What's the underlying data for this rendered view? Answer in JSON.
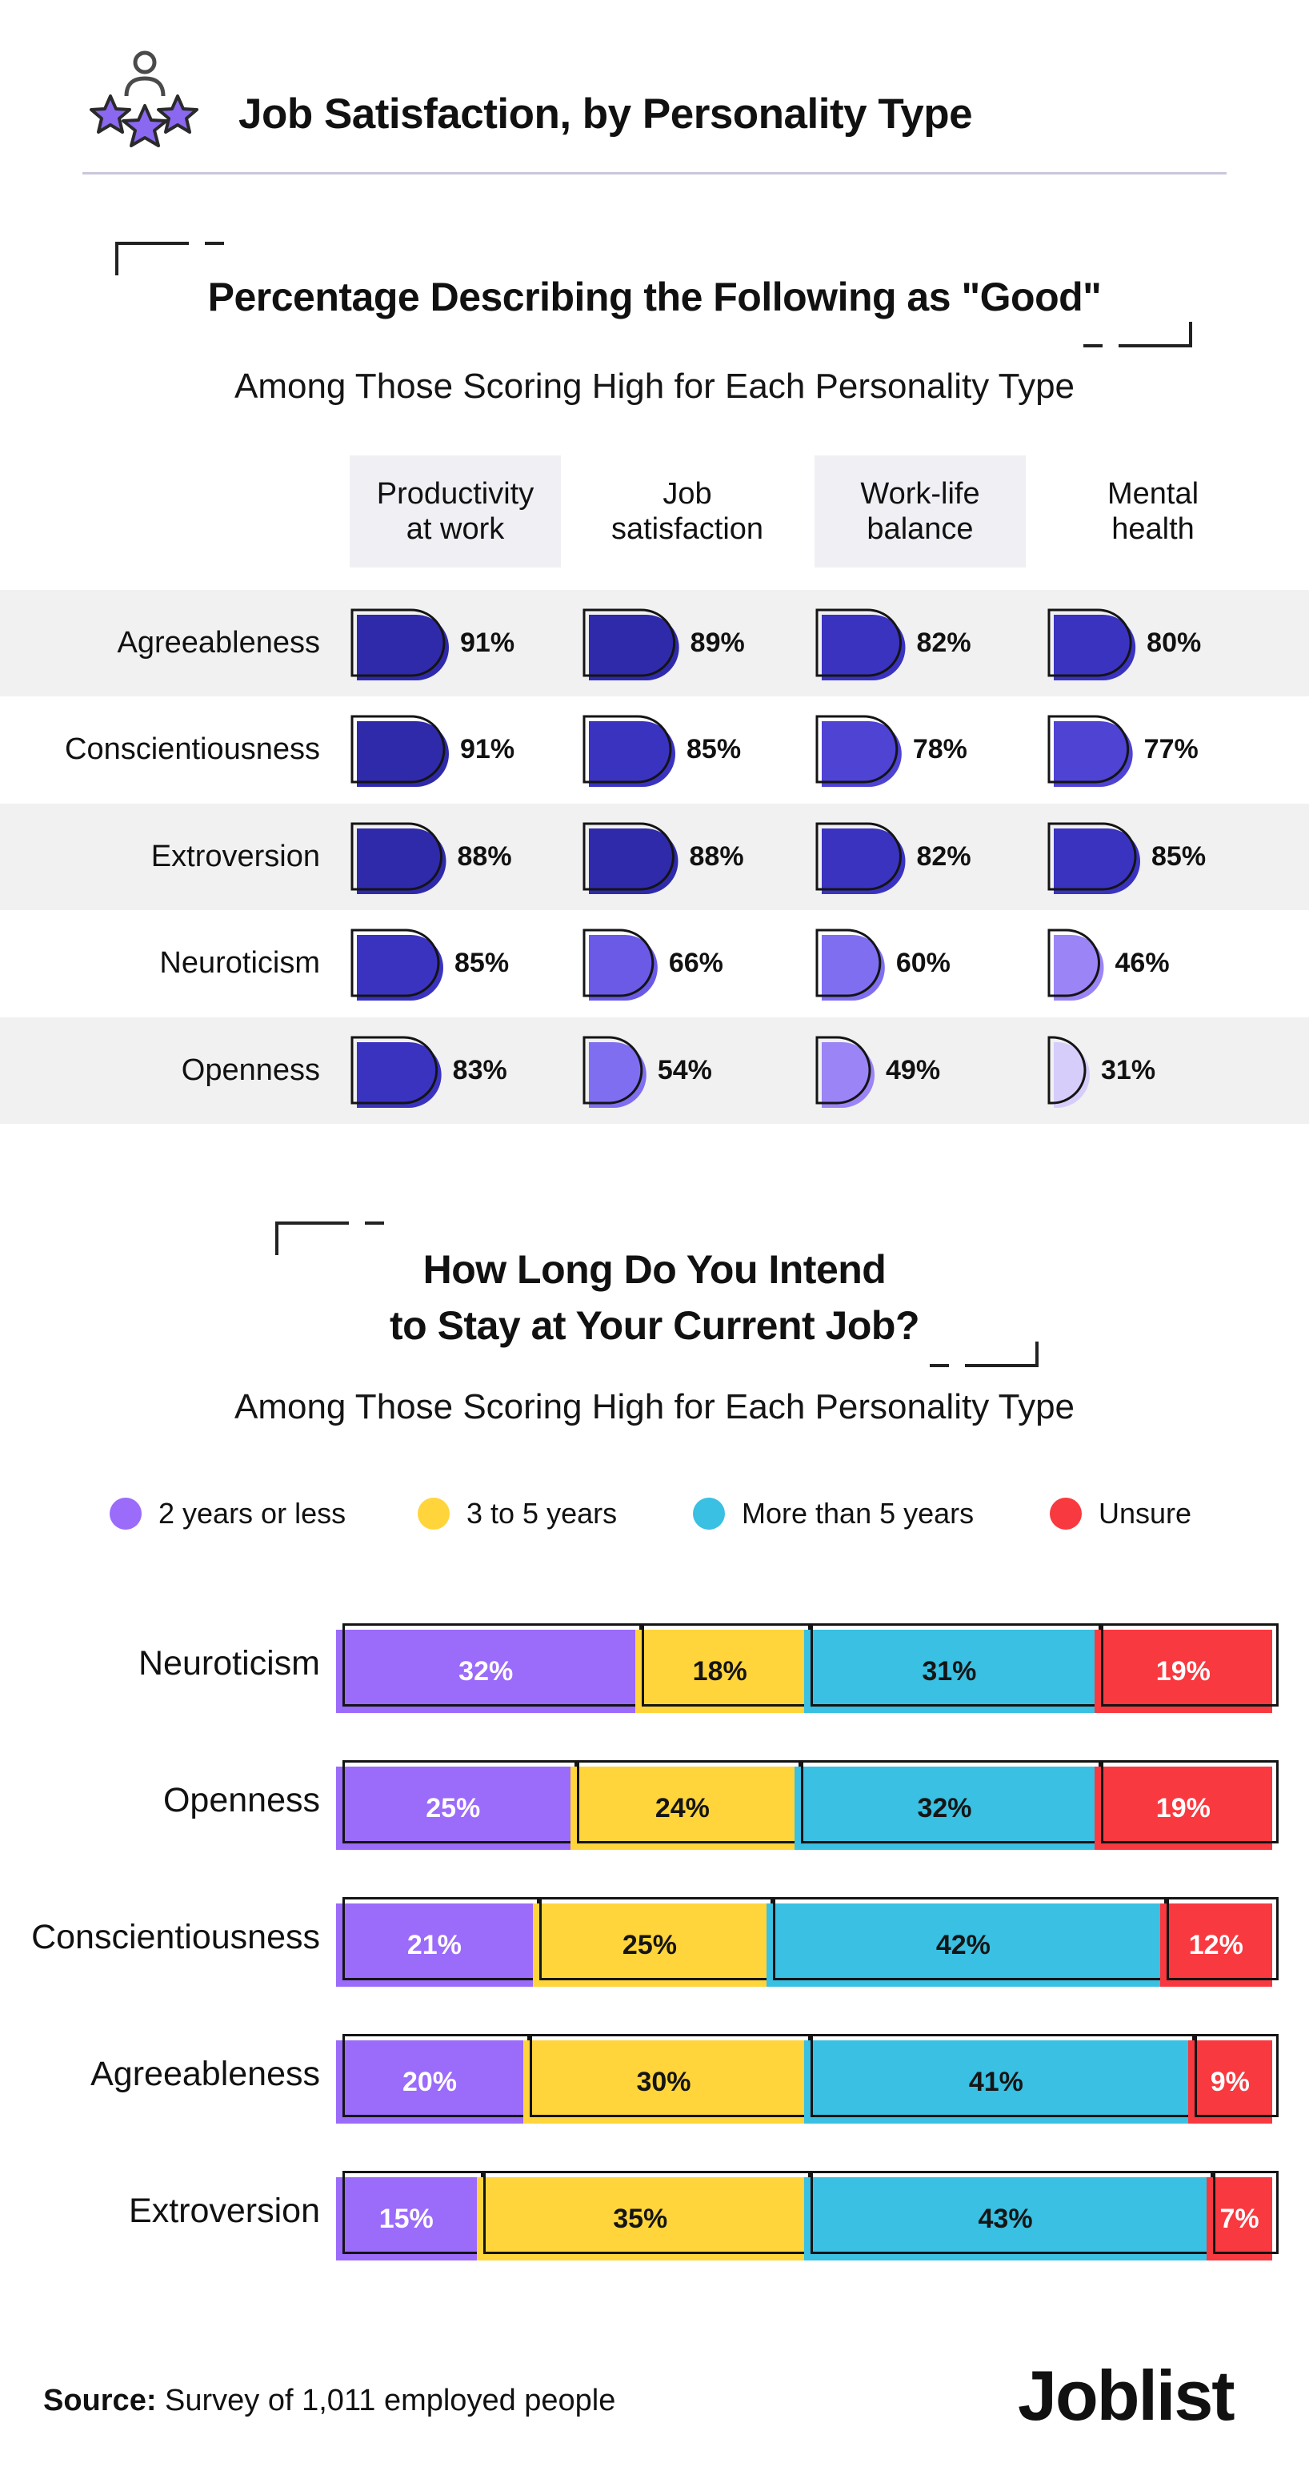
{
  "header": {
    "title": "Job Satisfaction, by Personality Type",
    "icon": "person-with-stars-icon"
  },
  "section1": {
    "title": "Percentage Describing the Following as \"Good\"",
    "subtitle": "Among Those Scoring High for Each Personality Type",
    "columns": [
      {
        "line1": "Productivity",
        "line2": "at work"
      },
      {
        "line1": "Job",
        "line2": "satisfaction"
      },
      {
        "line1": "Work-life",
        "line2": "balance"
      },
      {
        "line1": "Mental",
        "line2": "health"
      }
    ],
    "rows": [
      {
        "label": "Agreeableness",
        "pcts": [
          "91%",
          "89%",
          "82%",
          "80%"
        ]
      },
      {
        "label": "Conscientiousness",
        "pcts": [
          "91%",
          "85%",
          "78%",
          "77%"
        ]
      },
      {
        "label": "Extroversion",
        "pcts": [
          "88%",
          "88%",
          "82%",
          "85%"
        ]
      },
      {
        "label": "Neuroticism",
        "pcts": [
          "85%",
          "66%",
          "60%",
          "46%"
        ]
      },
      {
        "label": "Openness",
        "pcts": [
          "83%",
          "54%",
          "49%",
          "31%"
        ]
      }
    ]
  },
  "section2": {
    "title_line1": "How Long Do You Intend",
    "title_line2": "to Stay at Your Current Job?",
    "subtitle": "Among Those Scoring High for Each Personality Type",
    "legend": [
      {
        "label": "2 years or less",
        "color": "#9b6bfa"
      },
      {
        "label": "3 to 5 years",
        "color": "#ffd53b"
      },
      {
        "label": "More than 5 years",
        "color": "#39c0e2"
      },
      {
        "label": "Unsure",
        "color": "#f8393f"
      }
    ],
    "rows": [
      {
        "label": "Neuroticism",
        "pcts": [
          "32%",
          "18%",
          "31%",
          "19%"
        ]
      },
      {
        "label": "Openness",
        "pcts": [
          "25%",
          "24%",
          "32%",
          "19%"
        ]
      },
      {
        "label": "Conscientiousness",
        "pcts": [
          "21%",
          "25%",
          "42%",
          "12%"
        ]
      },
      {
        "label": "Agreeableness",
        "pcts": [
          "20%",
          "30%",
          "41%",
          "9%"
        ]
      },
      {
        "label": "Extroversion",
        "pcts": [
          "15%",
          "35%",
          "43%",
          "7%"
        ]
      }
    ]
  },
  "footer": {
    "source_label": "Source:",
    "source_text": " Survey of 1,011 employed people",
    "logo": "Joblist"
  },
  "chart_data": [
    {
      "type": "table",
      "title": "Percentage Describing the Following as \"Good\"",
      "subtitle": "Among Those Scoring High for Each Personality Type",
      "categories": [
        "Agreeableness",
        "Conscientiousness",
        "Extroversion",
        "Neuroticism",
        "Openness"
      ],
      "series": [
        {
          "name": "Productivity at work",
          "values": [
            91,
            91,
            88,
            85,
            83
          ]
        },
        {
          "name": "Job satisfaction",
          "values": [
            89,
            85,
            88,
            66,
            54
          ]
        },
        {
          "name": "Work-life balance",
          "values": [
            82,
            78,
            82,
            60,
            49
          ]
        },
        {
          "name": "Mental health",
          "values": [
            80,
            77,
            85,
            46,
            31
          ]
        }
      ],
      "color_scale": [
        "#d7cdfb",
        "#bba5fb",
        "#9b84f5",
        "#7f6ff0",
        "#6a5ae6",
        "#4e43d3",
        "#3a33c0",
        "#2f2aaa"
      ]
    },
    {
      "type": "bar",
      "stacked": true,
      "orientation": "horizontal",
      "title": "How Long Do You Intend to Stay at Your Current Job?",
      "subtitle": "Among Those Scoring High for Each Personality Type",
      "categories": [
        "Neuroticism",
        "Openness",
        "Conscientiousness",
        "Agreeableness",
        "Extroversion"
      ],
      "series": [
        {
          "name": "2 years or less",
          "color": "#9b6bfa",
          "values": [
            32,
            25,
            21,
            20,
            15
          ]
        },
        {
          "name": "3 to 5 years",
          "color": "#ffd53b",
          "values": [
            18,
            24,
            25,
            30,
            35
          ]
        },
        {
          "name": "More than 5 years",
          "color": "#39c0e2",
          "values": [
            31,
            32,
            42,
            41,
            43
          ]
        },
        {
          "name": "Unsure",
          "color": "#f8393f",
          "values": [
            19,
            19,
            12,
            9,
            7
          ]
        }
      ],
      "xlim": [
        0,
        100
      ],
      "legend": "top"
    }
  ]
}
